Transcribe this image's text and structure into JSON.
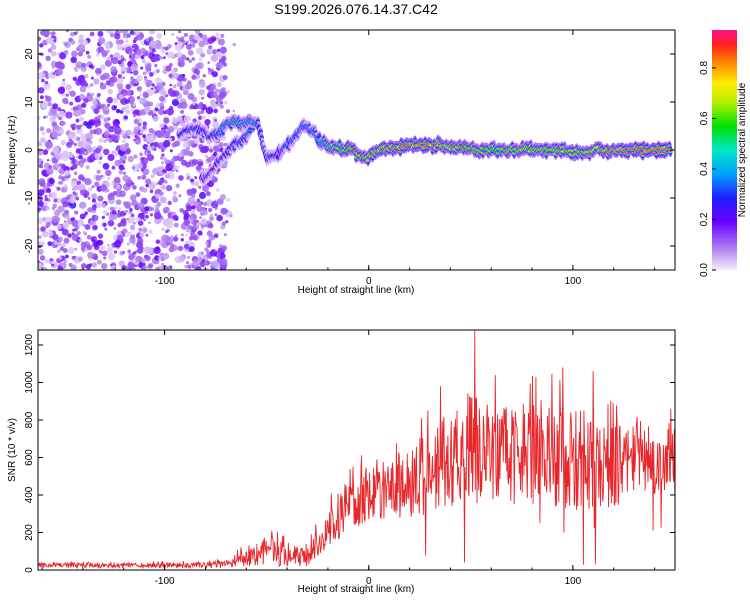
{
  "title": "S199.2026.076.14.37.C42",
  "chart_data": [
    {
      "type": "heatmap",
      "name": "spectrogram",
      "xlabel": "Height of straight line (km)",
      "ylabel": "Frequency (Hz)",
      "xlim": [
        -162,
        150
      ],
      "ylim": [
        -25,
        25
      ],
      "x_ticks": [
        "-100",
        "0",
        "100"
      ],
      "y_ticks": [
        "-20",
        "-10",
        "0",
        "10",
        "20"
      ],
      "colorbar": {
        "label": "Normalized spectral amplitude",
        "range": [
          0,
          0.95
        ],
        "ticks": [
          "0.0",
          "0.2",
          "0.4",
          "0.6",
          "0.8"
        ]
      },
      "noise_region": {
        "x_range": [
          -162,
          -70
        ],
        "y_range": [
          -25,
          25
        ],
        "amplitude": 0.1
      },
      "ridge": {
        "x": [
          -93,
          -90,
          -86,
          -82,
          -78,
          -74,
          -70,
          -66,
          -62,
          -58,
          -54,
          -50,
          -45,
          -40,
          -36,
          -32,
          -28,
          -24,
          -20,
          -16,
          -12,
          -8,
          -4,
          0,
          5,
          10,
          15,
          20,
          25,
          30,
          35,
          40,
          45,
          50,
          55,
          60,
          65,
          70,
          75,
          80,
          85,
          90,
          95,
          100,
          105,
          110,
          115,
          120,
          125,
          130,
          135,
          140,
          145,
          148
        ],
        "frequency": [
          3,
          4,
          4.5,
          4,
          3,
          3,
          5,
          6,
          5.5,
          6,
          5,
          -2,
          -1,
          1,
          3,
          5,
          4,
          2,
          1,
          0.5,
          0,
          0.5,
          -1.5,
          -1.5,
          0,
          0.5,
          0.5,
          1,
          1,
          1,
          1,
          0.5,
          0.5,
          0.5,
          0,
          0.3,
          0,
          0,
          0.3,
          0,
          0,
          0,
          0,
          -0.5,
          -0.5,
          0,
          0,
          0,
          0,
          0,
          0,
          0,
          0,
          0
        ],
        "amplitude": [
          0.3,
          0.3,
          0.35,
          0.3,
          0.3,
          0.4,
          0.45,
          0.5,
          0.45,
          0.5,
          0.4,
          0.3,
          0.3,
          0.35,
          0.4,
          0.4,
          0.4,
          0.45,
          0.55,
          0.65,
          0.7,
          0.72,
          0.75,
          0.75,
          0.8,
          0.85,
          0.9,
          0.85,
          0.9,
          0.9,
          0.85,
          0.8,
          0.75,
          0.7,
          0.72,
          0.7,
          0.7,
          0.72,
          0.75,
          0.72,
          0.7,
          0.72,
          0.75,
          0.72,
          0.75,
          0.8,
          0.85,
          0.85,
          0.88,
          0.9,
          0.9,
          0.9,
          0.88,
          0.85
        ]
      },
      "lower_branch": {
        "x": [
          -82,
          -78,
          -74,
          -70,
          -66,
          -62,
          -58
        ],
        "frequency": [
          -6,
          -5,
          -3,
          -1,
          1,
          2,
          4
        ],
        "amplitude": [
          0.25,
          0.25,
          0.3,
          0.3,
          0.3,
          0.35,
          0.4
        ]
      }
    },
    {
      "type": "line",
      "name": "snr",
      "xlabel": "Height of straight line (km)",
      "ylabel": "SNR (10 * v/v)",
      "xlim": [
        -162,
        150
      ],
      "ylim": [
        0,
        1280
      ],
      "x_ticks": [
        "-100",
        "0",
        "100"
      ],
      "y_ticks": [
        "0",
        "200",
        "400",
        "600",
        "800",
        "1000",
        "1200"
      ],
      "color": "#e8262b",
      "envelope": {
        "x": [
          -162,
          -120,
          -80,
          -68,
          -60,
          -50,
          -40,
          -30,
          -20,
          -10,
          0,
          10,
          20,
          30,
          40,
          50,
          60,
          70,
          80,
          90,
          100,
          110,
          120,
          130,
          140,
          150
        ],
        "mean": [
          25,
          25,
          25,
          35,
          70,
          100,
          90,
          80,
          220,
          330,
          420,
          430,
          450,
          520,
          600,
          640,
          620,
          600,
          620,
          600,
          580,
          560,
          560,
          590,
          600,
          620
        ],
        "spread": [
          15,
          15,
          15,
          25,
          50,
          80,
          70,
          60,
          100,
          140,
          160,
          170,
          180,
          220,
          260,
          320,
          280,
          260,
          280,
          280,
          260,
          250,
          240,
          220,
          210,
          200
        ]
      },
      "peaks": [
        {
          "x": 52,
          "y": 1280
        },
        {
          "x": 47,
          "y": 40
        },
        {
          "x": 35,
          "y": 980
        },
        {
          "x": 62,
          "y": 1040
        },
        {
          "x": 82,
          "y": 1030
        },
        {
          "x": 95,
          "y": 1080
        },
        {
          "x": 110,
          "y": 1060
        },
        {
          "x": 111,
          "y": 30
        },
        {
          "x": 148,
          "y": 860
        }
      ]
    }
  ]
}
